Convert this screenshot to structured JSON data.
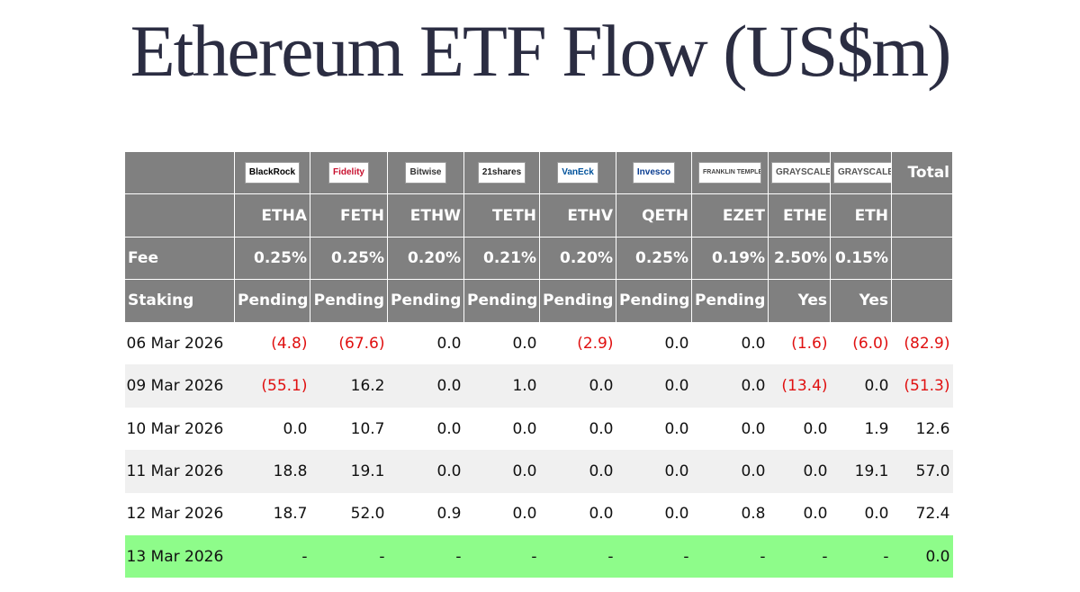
{
  "header": {
    "title": "Ethereum ETF Flow (US$m)"
  },
  "table": {
    "logos": [
      "BlackRock",
      "Fidelity",
      "Bitwise",
      "21shares",
      "VanEck",
      "Invesco",
      "FRANKLIN TEMPLETON",
      "GRAYSCALE",
      "GRAYSCALE"
    ],
    "total_label": "Total",
    "tickers": [
      "ETHA",
      "FETH",
      "ETHW",
      "TETH",
      "ETHV",
      "QETH",
      "EZET",
      "ETHE",
      "ETH"
    ],
    "fee_label": "Fee",
    "fees": [
      "0.25%",
      "0.25%",
      "0.20%",
      "0.21%",
      "0.20%",
      "0.25%",
      "0.19%",
      "2.50%",
      "0.15%"
    ],
    "staking_label": "Staking",
    "staking": [
      "Pending",
      "Pending",
      "Pending",
      "Pending",
      "Pending",
      "Pending",
      "Pending",
      "Yes",
      "Yes"
    ],
    "rows": [
      [
        "06 Mar 2026",
        "(4.8)",
        "(67.6)",
        "0.0",
        "0.0",
        "(2.9)",
        "0.0",
        "0.0",
        "(1.6)",
        "(6.0)",
        "(82.9)"
      ],
      [
        "09 Mar 2026",
        "(55.1)",
        "16.2",
        "0.0",
        "1.0",
        "0.0",
        "0.0",
        "0.0",
        "(13.4)",
        "0.0",
        "(51.3)"
      ],
      [
        "10 Mar 2026",
        "0.0",
        "10.7",
        "0.0",
        "0.0",
        "0.0",
        "0.0",
        "0.0",
        "0.0",
        "1.9",
        "12.6"
      ],
      [
        "11 Mar 2026",
        "18.8",
        "19.1",
        "0.0",
        "0.0",
        "0.0",
        "0.0",
        "0.0",
        "0.0",
        "19.1",
        "57.0"
      ],
      [
        "12 Mar 2026",
        "18.7",
        "52.0",
        "0.9",
        "0.0",
        "0.0",
        "0.0",
        "0.8",
        "0.0",
        "0.0",
        "72.4"
      ],
      [
        "13 Mar 2026",
        "-",
        "-",
        "-",
        "-",
        "-",
        "-",
        "-",
        "-",
        "-",
        "0.0"
      ]
    ]
  }
}
